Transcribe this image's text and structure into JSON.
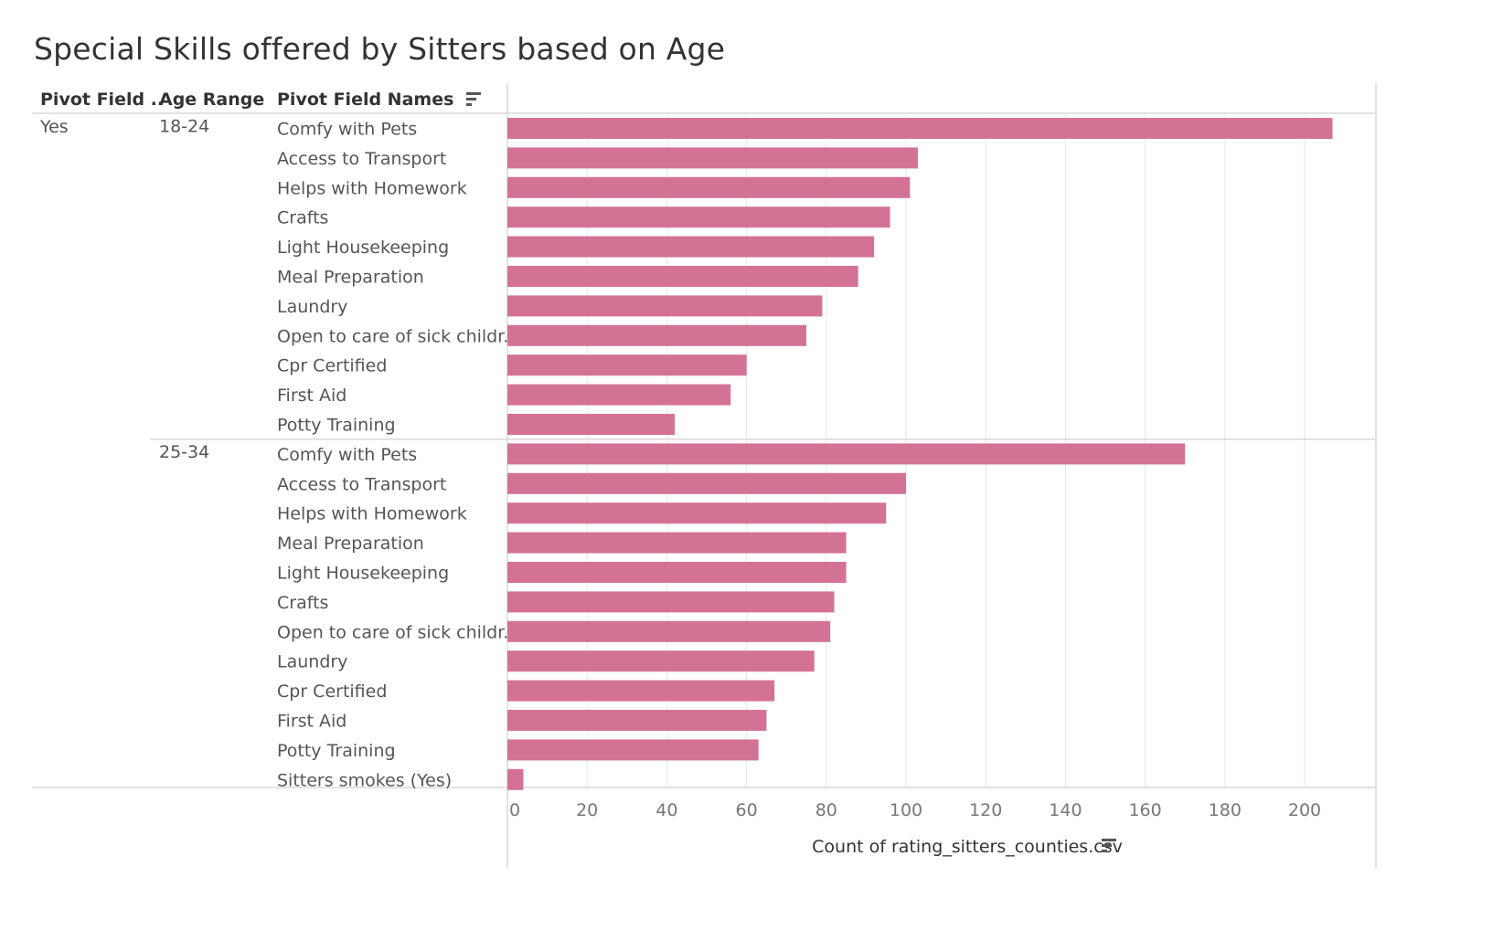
{
  "title": "Special Skills offered by Sitters based on Age",
  "headers": {
    "col1": "Pivot Field ..",
    "col2": "Age Range",
    "col3": "Pivot Field Names"
  },
  "pivot_value": "Yes",
  "sort_icon": "sort-descending-icon",
  "colors": {
    "bar": "#d47296",
    "grid": "#e6e6e6",
    "separator": "#d9d9d9"
  },
  "chart_data": {
    "type": "bar",
    "orientation": "horizontal",
    "title": "Special Skills offered by Sitters based on Age",
    "xlabel": "Count of rating_sitters_counties.csv",
    "xlim": [
      0,
      216
    ],
    "xticks": [
      0,
      20,
      40,
      60,
      80,
      100,
      120,
      140,
      160,
      180,
      200
    ],
    "grid": true,
    "groups": [
      {
        "pivot": "Yes",
        "age_range": "18-24",
        "categories": [
          "Comfy with Pets",
          "Access to Transport",
          "Helps with Homework",
          "Crafts",
          "Light Housekeeping",
          "Meal Preparation",
          "Laundry",
          "Open to care of sick childr..",
          "Cpr Certified",
          "First Aid",
          "Potty Training"
        ],
        "values": [
          207,
          103,
          101,
          96,
          92,
          88,
          79,
          75,
          60,
          56,
          42
        ]
      },
      {
        "pivot": "Yes",
        "age_range": "25-34",
        "categories": [
          "Comfy with Pets",
          "Access to Transport",
          "Helps with Homework",
          "Meal Preparation",
          "Light Housekeeping",
          "Crafts",
          "Open to care of sick childr..",
          "Laundry",
          "Cpr Certified",
          "First Aid",
          "Potty Training",
          "Sitters smokes (Yes)"
        ],
        "values": [
          170,
          100,
          95,
          85,
          85,
          82,
          81,
          77,
          67,
          65,
          63,
          4
        ]
      }
    ]
  }
}
